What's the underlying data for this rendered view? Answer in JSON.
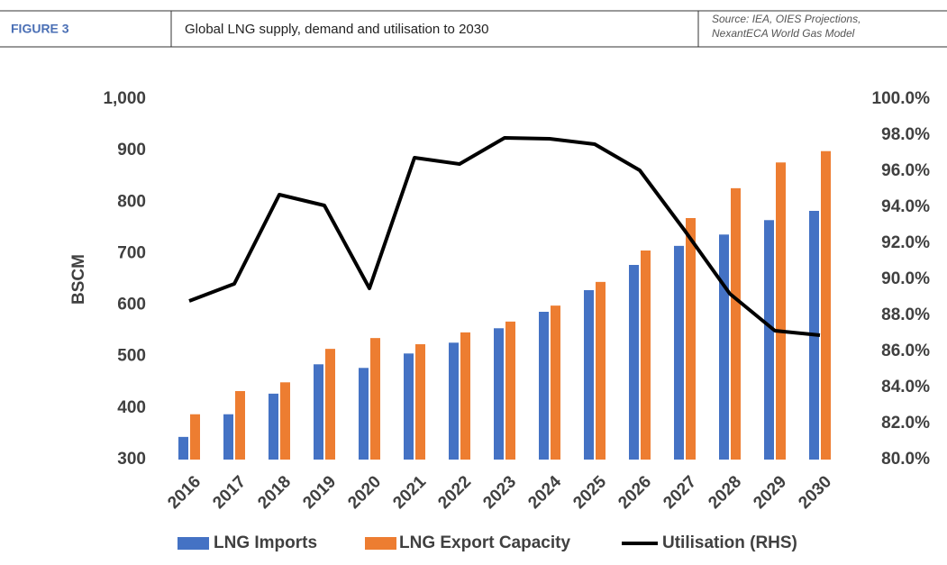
{
  "chart_data": {
    "type": "bar-line",
    "figure_label": "FIGURE 3",
    "title": "Global LNG supply, demand and utilisation to 2030",
    "source": [
      "Source:  IEA,  OIES  Projections,",
      "NexantECA World Gas Model"
    ],
    "ylabel": "BSCM",
    "categories": [
      "2016",
      "2017",
      "2018",
      "2019",
      "2020",
      "2021",
      "2022",
      "2023",
      "2024",
      "2025",
      "2026",
      "2027",
      "2028",
      "2029",
      "2030"
    ],
    "series": [
      {
        "name": "LNG Imports",
        "color": "#4472c4",
        "type": "bar",
        "values": [
          344,
          388,
          428,
          485,
          478,
          506,
          527,
          555,
          587,
          629,
          678,
          715,
          737,
          765,
          783
        ]
      },
      {
        "name": "LNG Export Capacity",
        "color": "#ed7d31",
        "type": "bar",
        "values": [
          388,
          433,
          450,
          515,
          536,
          524,
          547,
          568,
          599,
          645,
          706,
          769,
          827,
          877,
          899
        ]
      },
      {
        "name": "Utilisation (RHS)",
        "color": "#000000",
        "type": "line",
        "axis": "y2",
        "values": [
          88.8,
          89.75,
          94.7,
          94.1,
          89.5,
          96.75,
          96.4,
          97.85,
          97.8,
          97.5,
          96.05,
          92.7,
          89.2,
          87.15,
          86.9
        ]
      }
    ],
    "ylim": [
      300,
      1000
    ],
    "yticks": [
      300,
      400,
      500,
      600,
      700,
      800,
      900,
      {
        "value": 1000,
        "label": "1,000"
      }
    ],
    "y2lim": [
      80,
      100
    ],
    "y2ticks": [
      {
        "value": 80,
        "label": "80.0%"
      },
      {
        "value": 82,
        "label": "82.0%"
      },
      {
        "value": 84,
        "label": "84.0%"
      },
      {
        "value": 86,
        "label": "86.0%"
      },
      {
        "value": 88,
        "label": "88.0%"
      },
      {
        "value": 90,
        "label": "90.0%"
      },
      {
        "value": 92,
        "label": "92.0%"
      },
      {
        "value": 94,
        "label": "94.0%"
      },
      {
        "value": 96,
        "label": "96.0%"
      },
      {
        "value": 98,
        "label": "98.0%"
      },
      {
        "value": 100,
        "label": "100.0%"
      }
    ],
    "grid": false,
    "legend": "bottom"
  }
}
